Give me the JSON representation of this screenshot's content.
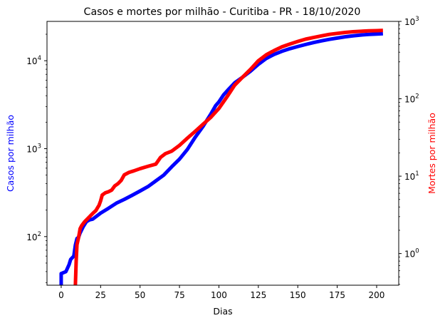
{
  "chart_data": {
    "type": "line",
    "title": "Casos e mortes por milhão - Curitiba - PR - 18/10/2020",
    "xlabel": "Dias",
    "xlim": [
      -9,
      214
    ],
    "xticks": [
      0,
      25,
      50,
      75,
      100,
      125,
      150,
      175,
      200
    ],
    "left_axis": {
      "label": "Casos por milhão",
      "scale": "log",
      "ylim": [
        28,
        28000
      ],
      "ticks": [
        100,
        1000,
        10000
      ],
      "tick_labels": [
        {
          "base": "10",
          "exp": "2"
        },
        {
          "base": "10",
          "exp": "3"
        },
        {
          "base": "10",
          "exp": "4"
        }
      ],
      "color": "#0000ff"
    },
    "right_axis": {
      "label": "Mortes por milhão",
      "scale": "log",
      "ylim": [
        0.39,
        1000
      ],
      "ticks": [
        1,
        10,
        100,
        1000
      ],
      "tick_labels": [
        {
          "base": "10",
          "exp": "0"
        },
        {
          "base": "10",
          "exp": "1"
        },
        {
          "base": "10",
          "exp": "2"
        },
        {
          "base": "10",
          "exp": "3"
        }
      ],
      "color": "#ff0000"
    },
    "grid": false,
    "series": [
      {
        "axis": "left",
        "color": "#0000ff",
        "points": [
          [
            0,
            28
          ],
          [
            0,
            38
          ],
          [
            3,
            40
          ],
          [
            5,
            48
          ],
          [
            6,
            55
          ],
          [
            8,
            60
          ],
          [
            9,
            80
          ],
          [
            10,
            95
          ],
          [
            11,
            98
          ],
          [
            12,
            110
          ],
          [
            14,
            130
          ],
          [
            16,
            148
          ],
          [
            18,
            155
          ],
          [
            20,
            158
          ],
          [
            25,
            185
          ],
          [
            30,
            210
          ],
          [
            35,
            240
          ],
          [
            40,
            265
          ],
          [
            45,
            295
          ],
          [
            50,
            330
          ],
          [
            55,
            370
          ],
          [
            60,
            430
          ],
          [
            65,
            500
          ],
          [
            70,
            620
          ],
          [
            75,
            760
          ],
          [
            80,
            980
          ],
          [
            85,
            1350
          ],
          [
            90,
            1800
          ],
          [
            95,
            2500
          ],
          [
            98,
            3100
          ],
          [
            100,
            3400
          ],
          [
            103,
            4100
          ],
          [
            106,
            4700
          ],
          [
            110,
            5600
          ],
          [
            115,
            6500
          ],
          [
            120,
            7600
          ],
          [
            125,
            9100
          ],
          [
            130,
            10600
          ],
          [
            135,
            11800
          ],
          [
            140,
            12800
          ],
          [
            145,
            13700
          ],
          [
            150,
            14500
          ],
          [
            155,
            15300
          ],
          [
            160,
            16100
          ],
          [
            165,
            16800
          ],
          [
            170,
            17500
          ],
          [
            175,
            18100
          ],
          [
            180,
            18700
          ],
          [
            185,
            19200
          ],
          [
            190,
            19600
          ],
          [
            195,
            19900
          ],
          [
            200,
            20100
          ],
          [
            204,
            20300
          ]
        ]
      },
      {
        "axis": "right",
        "color": "#ff0000",
        "points": [
          [
            9,
            0.39
          ],
          [
            9.5,
            0.8
          ],
          [
            10,
            1.3
          ],
          [
            11,
            1.6
          ],
          [
            12,
            2.1
          ],
          [
            13,
            2.3
          ],
          [
            15,
            2.6
          ],
          [
            18,
            3.0
          ],
          [
            20,
            3.3
          ],
          [
            22,
            3.6
          ],
          [
            23,
            3.9
          ],
          [
            24,
            4.2
          ],
          [
            25,
            4.8
          ],
          [
            26,
            5.7
          ],
          [
            28,
            6.1
          ],
          [
            30,
            6.3
          ],
          [
            32,
            6.6
          ],
          [
            34,
            7.5
          ],
          [
            36,
            8.0
          ],
          [
            38,
            8.8
          ],
          [
            40,
            10.4
          ],
          [
            43,
            11.2
          ],
          [
            46,
            11.7
          ],
          [
            50,
            12.5
          ],
          [
            55,
            13.4
          ],
          [
            60,
            14.3
          ],
          [
            63,
            17.5
          ],
          [
            66,
            19.5
          ],
          [
            70,
            21.0
          ],
          [
            75,
            25.0
          ],
          [
            80,
            31.0
          ],
          [
            85,
            38.0
          ],
          [
            90,
            47.0
          ],
          [
            95,
            58.0
          ],
          [
            100,
            75.0
          ],
          [
            105,
            105.0
          ],
          [
            110,
            150.0
          ],
          [
            115,
            190.0
          ],
          [
            120,
            240.0
          ],
          [
            125,
            310.0
          ],
          [
            130,
            370.0
          ],
          [
            135,
            420.0
          ],
          [
            140,
            470.0
          ],
          [
            145,
            510.0
          ],
          [
            150,
            550.0
          ],
          [
            155,
            590.0
          ],
          [
            160,
            620.0
          ],
          [
            165,
            650.0
          ],
          [
            170,
            680.0
          ],
          [
            175,
            700.0
          ],
          [
            180,
            720.0
          ],
          [
            185,
            735.0
          ],
          [
            190,
            745.0
          ],
          [
            195,
            755.0
          ],
          [
            200,
            760.0
          ],
          [
            204,
            765.0
          ]
        ]
      }
    ]
  }
}
